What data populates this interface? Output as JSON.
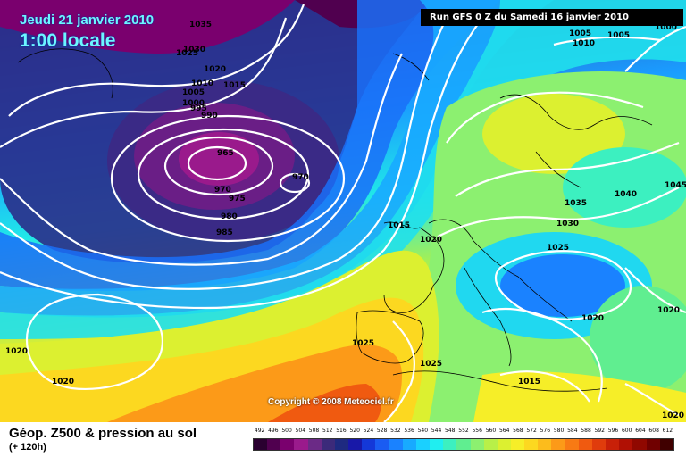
{
  "header": {
    "date_label": "Jeudi 21 janvier 2010",
    "time_label": "1:00 locale",
    "run_label": "Run GFS 0 Z du Samedi 16 janvier 2010"
  },
  "footer": {
    "title": "Géop. Z500 & pression au sol",
    "subtitle": "(+ 120h)",
    "copyright": "Copyright © 2008 Meteociel.fr"
  },
  "legend": {
    "values": [
      "492",
      "496",
      "500",
      "504",
      "508",
      "512",
      "516",
      "520",
      "524",
      "528",
      "532",
      "536",
      "540",
      "544",
      "548",
      "552",
      "556",
      "560",
      "564",
      "568",
      "572",
      "576",
      "580",
      "584",
      "588",
      "592",
      "596",
      "600",
      "604",
      "608",
      "612"
    ],
    "colors": [
      "#2a0030",
      "#50004f",
      "#7a006e",
      "#9a1a8c",
      "#6b2a86",
      "#3c2a7a",
      "#1e2a80",
      "#1818a8",
      "#1438d8",
      "#1a5cf2",
      "#1a82ff",
      "#18aaff",
      "#1ad0ff",
      "#20eef0",
      "#3cf0c0",
      "#60ee90",
      "#8cf070",
      "#b8f048",
      "#dcf030",
      "#f6ee28",
      "#fcd820",
      "#fcbc1c",
      "#fc9a18",
      "#f87a14",
      "#f05a10",
      "#e03c0c",
      "#c82008",
      "#b01004",
      "#900800",
      "#700000",
      "#400000"
    ]
  },
  "isobars": [
    {
      "text": "1035"
    },
    {
      "text": "1030"
    },
    {
      "text": "1025"
    },
    {
      "text": "1020"
    },
    {
      "text": "1015"
    },
    {
      "text": "1010"
    },
    {
      "text": "1005"
    },
    {
      "text": "1000"
    },
    {
      "text": "995"
    },
    {
      "text": "990"
    },
    {
      "text": "965"
    },
    {
      "text": "970"
    },
    {
      "text": "970"
    },
    {
      "text": "975"
    },
    {
      "text": "980"
    },
    {
      "text": "985"
    },
    {
      "text": "1015"
    },
    {
      "text": "1020"
    },
    {
      "text": "1005"
    },
    {
      "text": "1010"
    },
    {
      "text": "1005"
    },
    {
      "text": "1000"
    },
    {
      "text": "1040"
    },
    {
      "text": "1045"
    },
    {
      "text": "1035"
    },
    {
      "text": "1030"
    },
    {
      "text": "1025"
    },
    {
      "text": "1020"
    },
    {
      "text": "1020"
    },
    {
      "text": "1025"
    },
    {
      "text": "1025"
    },
    {
      "text": "1015"
    },
    {
      "text": "1020"
    },
    {
      "text": "1020"
    },
    {
      "text": "1020"
    }
  ]
}
